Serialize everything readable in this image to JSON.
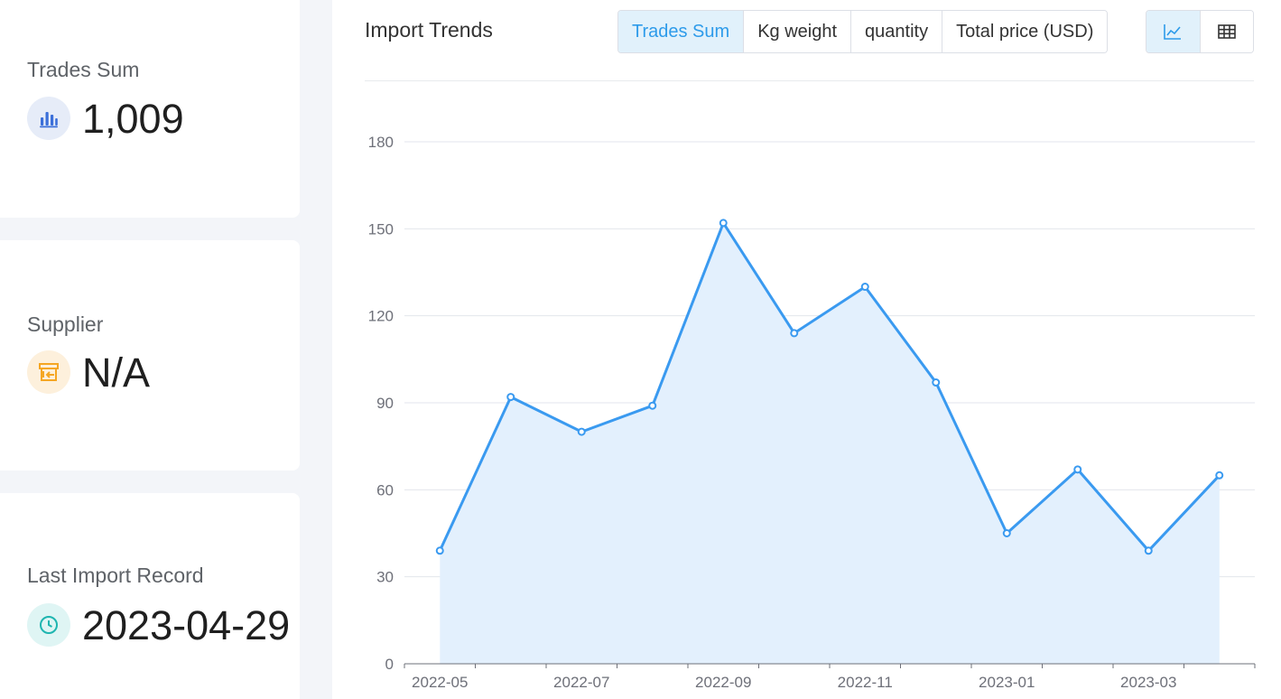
{
  "stats": [
    {
      "label": "Trades Sum",
      "value": "1,009",
      "icon": "bar-chart-icon",
      "icon_color": "#3b6fd9",
      "icon_bg": "#e6ecf8"
    },
    {
      "label": "Supplier",
      "value": "N/A",
      "icon": "storefront-icon",
      "icon_color": "#f5a623",
      "icon_bg": "#fdf0dc"
    },
    {
      "label": "Last Import Record",
      "value": "2023-04-29",
      "icon": "clock-icon",
      "icon_color": "#1fb5b0",
      "icon_bg": "#dff5f4"
    }
  ],
  "chart_header": {
    "title": "Import Trends",
    "tabs": [
      "Trades Sum",
      "Kg weight",
      "quantity",
      "Total price (USD)"
    ],
    "active_tab": "Trades Sum",
    "views": [
      "line-chart-icon",
      "table-icon"
    ],
    "active_view": "line-chart-icon"
  },
  "colors": {
    "accent": "#2d9bea",
    "line": "#3a9af0",
    "area": "#e3f0fd"
  },
  "chart_data": {
    "type": "area",
    "title": "",
    "xlabel": "",
    "ylabel": "",
    "x": [
      "2022-05",
      "2022-06",
      "2022-07",
      "2022-08",
      "2022-09",
      "2022-10",
      "2022-11",
      "2022-12",
      "2023-01",
      "2023-02",
      "2023-03",
      "2023-04"
    ],
    "x_tick_labels": [
      "2022-05",
      "2022-07",
      "2022-09",
      "2022-11",
      "2023-01",
      "2023-03"
    ],
    "values": [
      39,
      92,
      80,
      89,
      152,
      114,
      130,
      97,
      45,
      67,
      39,
      65
    ],
    "ylim": [
      0,
      180
    ],
    "yticks": [
      0,
      30,
      60,
      90,
      120,
      150,
      180
    ],
    "grid": true,
    "legend": "none"
  }
}
